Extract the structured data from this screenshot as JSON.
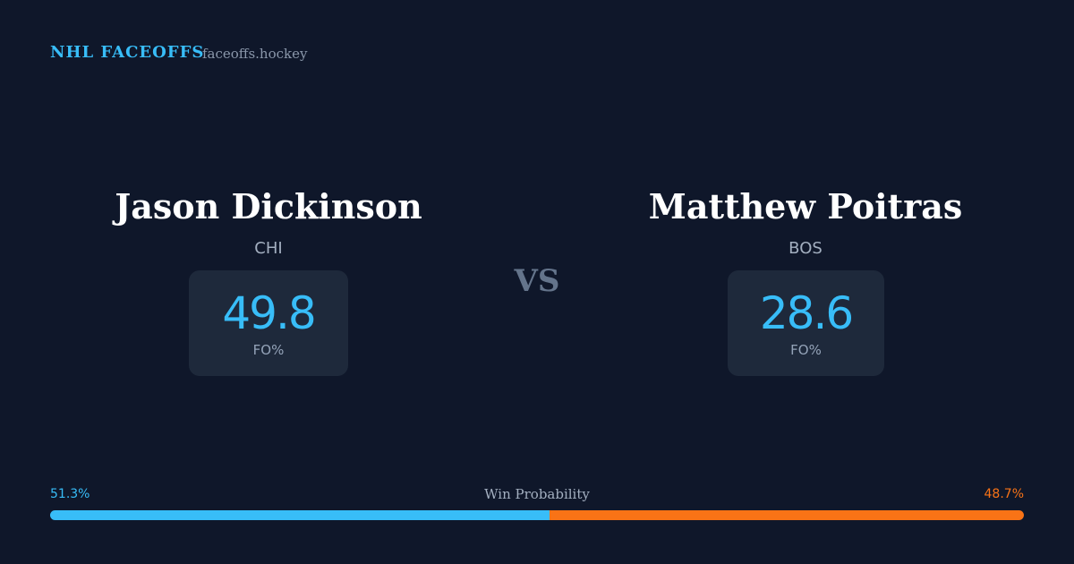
{
  "header": {
    "brand": "NHL FACEOFFS",
    "site": "faceoffs.hockey"
  },
  "players": [
    {
      "name": "Jason Dickinson",
      "team": "CHI",
      "stat": 49.8,
      "stat_label": "FO%"
    },
    {
      "name": "Matthew Poitras",
      "team": "BOS",
      "stat": 28.6,
      "stat_label": "FO%"
    }
  ],
  "versus": "VS",
  "win_probability": {
    "label": "Win Probability",
    "left": {
      "value": 51.3,
      "label": "51.3%",
      "color": "#38bdf8"
    },
    "right": {
      "value": 48.7,
      "label": "48.7%",
      "color": "#f97316"
    }
  }
}
